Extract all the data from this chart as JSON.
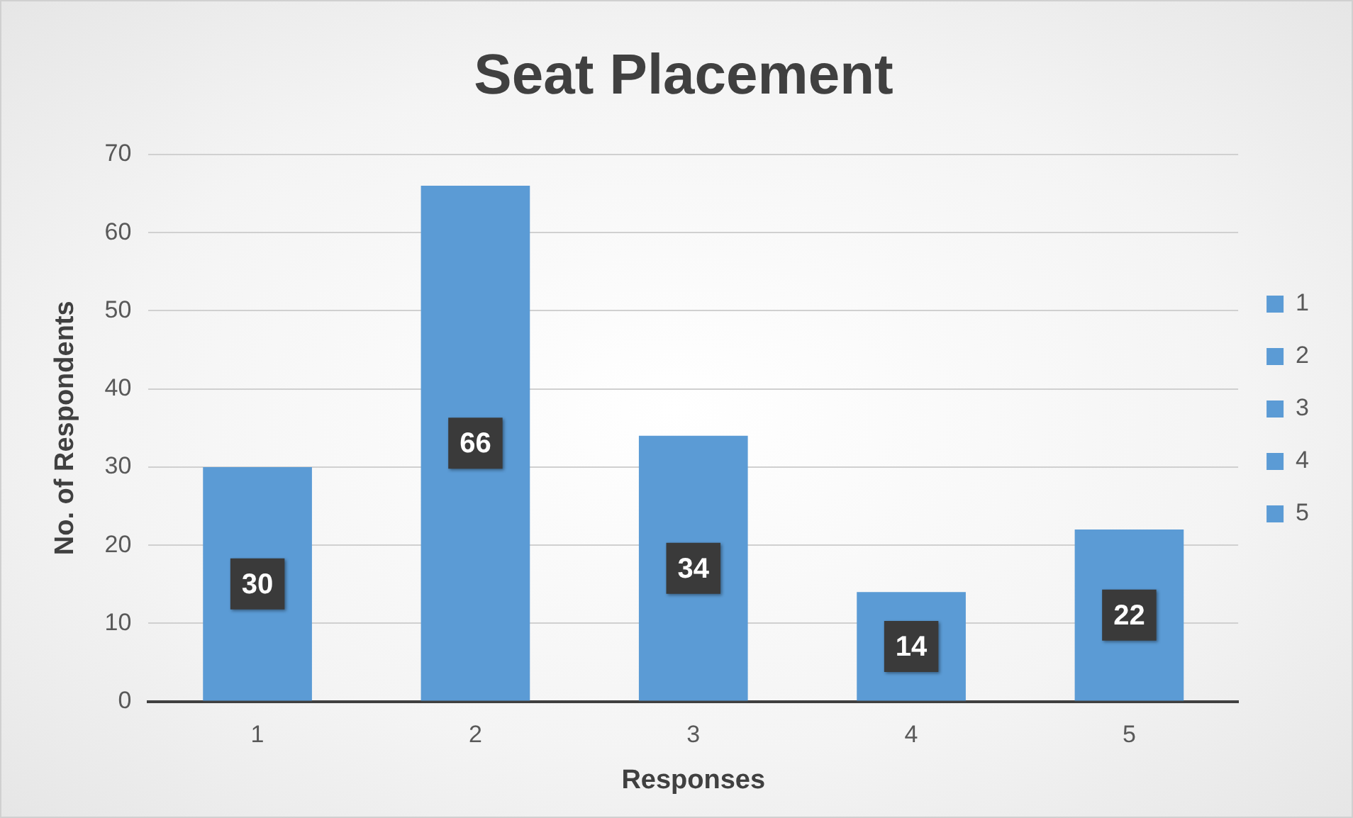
{
  "chart_data": {
    "type": "bar",
    "title": "Seat Placement",
    "xlabel": "Responses",
    "ylabel": "No. of Respondents",
    "categories": [
      "1",
      "2",
      "3",
      "4",
      "5"
    ],
    "series": [
      {
        "name": "1",
        "color": "#5b9bd5",
        "values": [
          30,
          null,
          null,
          null,
          null
        ]
      },
      {
        "name": "2",
        "color": "#5b9bd5",
        "values": [
          null,
          66,
          null,
          null,
          null
        ]
      },
      {
        "name": "3",
        "color": "#5b9bd5",
        "values": [
          null,
          null,
          34,
          null,
          null
        ]
      },
      {
        "name": "4",
        "color": "#5b9bd5",
        "values": [
          null,
          null,
          null,
          14,
          null
        ]
      },
      {
        "name": "5",
        "color": "#5b9bd5",
        "values": [
          null,
          null,
          null,
          null,
          22
        ]
      }
    ],
    "ylim": [
      0,
      70
    ],
    "yticks": [
      0,
      10,
      20,
      30,
      40,
      50,
      60,
      70
    ],
    "grid": "y",
    "legend": "right",
    "data_labels": true
  }
}
